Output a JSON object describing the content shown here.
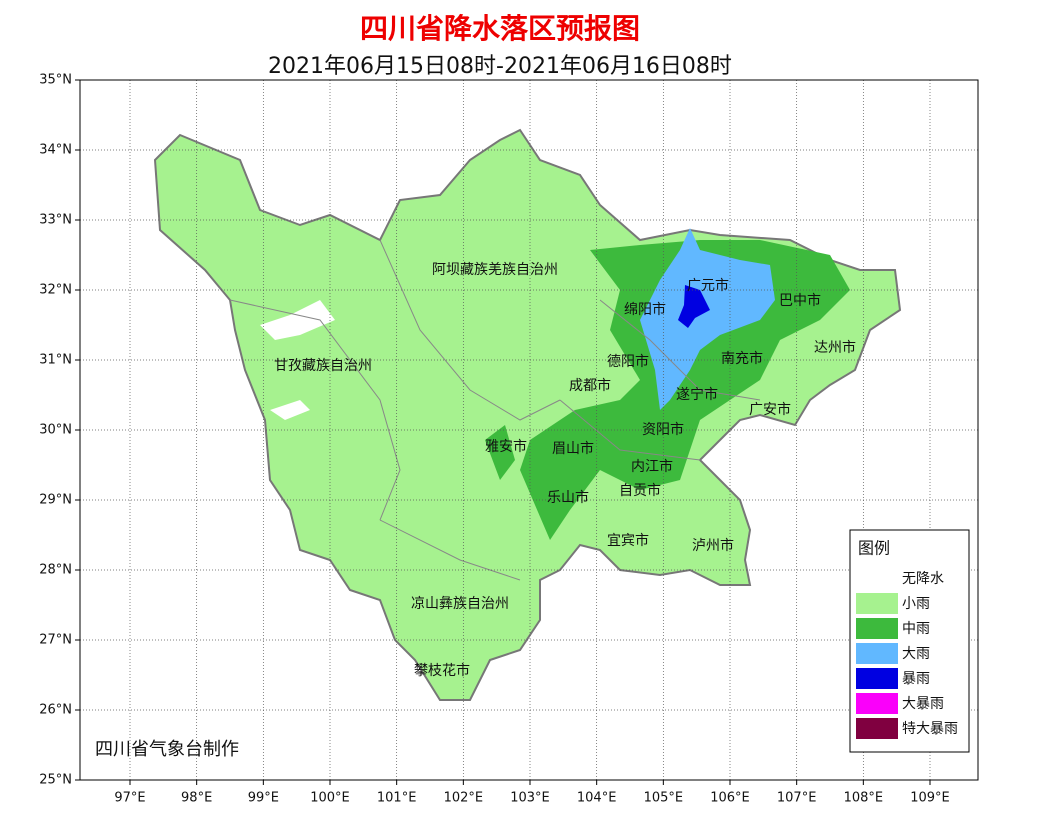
{
  "header": {
    "title": "四川省降水落区预报图",
    "subtitle": "2021年06月15日08时-2021年06月16日08时"
  },
  "map": {
    "xlim": [
      96.25,
      109.72
    ],
    "ylim": [
      25,
      35
    ],
    "xticks": [
      {
        "value": 97,
        "label": "97°E"
      },
      {
        "value": 98,
        "label": "98°E"
      },
      {
        "value": 99,
        "label": "99°E"
      },
      {
        "value": 100,
        "label": "100°E"
      },
      {
        "value": 101,
        "label": "101°E"
      },
      {
        "value": 102,
        "label": "102°E"
      },
      {
        "value": 103,
        "label": "103°E"
      },
      {
        "value": 104,
        "label": "104°E"
      },
      {
        "value": 105,
        "label": "105°E"
      },
      {
        "value": 106,
        "label": "106°E"
      },
      {
        "value": 107,
        "label": "107°E"
      },
      {
        "value": 108,
        "label": "108°E"
      },
      {
        "value": 109,
        "label": "109°E"
      }
    ],
    "yticks": [
      {
        "value": 25,
        "label": "25°N"
      },
      {
        "value": 26,
        "label": "26°N"
      },
      {
        "value": 27,
        "label": "27°N"
      },
      {
        "value": 28,
        "label": "28°N"
      },
      {
        "value": 29,
        "label": "29°N"
      },
      {
        "value": 30,
        "label": "30°N"
      },
      {
        "value": 31,
        "label": "31°N"
      },
      {
        "value": 32,
        "label": "32°N"
      },
      {
        "value": 33,
        "label": "33°N"
      },
      {
        "value": 34,
        "label": "34°N"
      },
      {
        "value": 35,
        "label": "35°N"
      }
    ],
    "regions": [
      "阿坝藏族羌族自治州",
      "甘孜藏族自治州",
      "凉山彝族自治州",
      "攀枝花市",
      "广元市",
      "绵阳市",
      "巴中市",
      "达州市",
      "南充市",
      "德阳市",
      "成都市",
      "遂宁市",
      "广安市",
      "资阳市",
      "雅安市",
      "眉山市",
      "内江市",
      "乐山市",
      "自贡市",
      "宜宾市",
      "泸州市"
    ]
  },
  "legend": {
    "title": "图例",
    "items": [
      {
        "name": "无降水",
        "color": "#ffffff"
      },
      {
        "name": "小雨",
        "color": "#a6f28f"
      },
      {
        "name": "中雨",
        "color": "#3dba3d"
      },
      {
        "name": "大雨",
        "color": "#61b8ff"
      },
      {
        "name": "暴雨",
        "color": "#0000e1"
      },
      {
        "name": "大暴雨",
        "color": "#fa00fa"
      },
      {
        "name": "特大暴雨",
        "color": "#800040"
      }
    ]
  },
  "footer": {
    "credit": "四川省气象台制作"
  }
}
